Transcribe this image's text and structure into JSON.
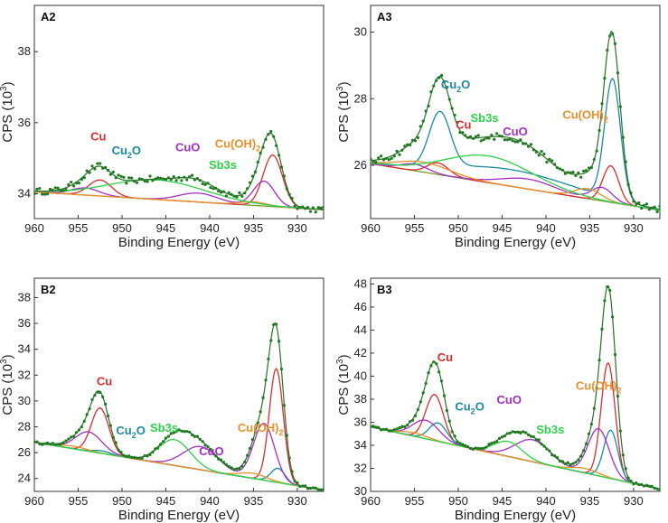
{
  "colors": {
    "Cu": "#d62e2e",
    "Cu2O": "#1a8aa0",
    "CuO": "#a22fc4",
    "Cu(OH)2": "#e8902a",
    "Sb3s": "#2fd14a",
    "background": "#7a9a2a",
    "data": "#1f7a1f",
    "envelope": "#2a6e2a"
  },
  "chart_data": [
    {
      "id": "A2",
      "type": "line",
      "label": "A2",
      "xlabel": "Binding Energy (eV)",
      "ylabel": "CPS (10^3)",
      "ylabel_main": "CPS (10",
      "ylabel_sup": "3",
      "ylabel_end": ")",
      "xlim": [
        960,
        927
      ],
      "ylim": [
        33.3,
        39.3
      ],
      "xticks": [
        960,
        955,
        950,
        945,
        940,
        935,
        930
      ],
      "yticks": [
        34,
        36,
        38
      ],
      "annotations": [
        {
          "text": "Cu",
          "sub": "",
          "species": "Cu",
          "x": 952.7,
          "y": 35.5
        },
        {
          "text": "Cu",
          "sub": "2",
          "post": "O",
          "species": "Cu2O",
          "x": 949.5,
          "y": 35.1
        },
        {
          "text": "CuO",
          "sub": "",
          "species": "CuO",
          "x": 942.5,
          "y": 35.2
        },
        {
          "text": "Cu(OH)",
          "sub": "2",
          "species": "Cu(OH)2",
          "x": 936.8,
          "y": 35.3
        },
        {
          "text": "Sb3s",
          "sub": "",
          "species": "Sb3s",
          "x": 938.5,
          "y": 34.7
        }
      ],
      "background": {
        "x": [
          960,
          927
        ],
        "y": [
          34.05,
          33.55
        ]
      },
      "components": [
        {
          "species": "Cu",
          "peaks": [
            [
              952.5,
              0.45,
              1.3
            ],
            [
              932.8,
              1.45,
              1.1
            ]
          ]
        },
        {
          "species": "Cu2O",
          "peaks": []
        },
        {
          "species": "CuO",
          "peaks": [
            [
              954.2,
              0.2,
              1.6
            ],
            [
              941.3,
              0.25,
              2.2
            ],
            [
              933.8,
              0.7,
              1.2
            ]
          ]
        },
        {
          "species": "Cu(OH)2",
          "peaks": [
            [
              935.0,
              0.1,
              1.5
            ]
          ]
        },
        {
          "species": "Sb3s",
          "peaks": [
            [
              946.0,
              0.55,
              5.5
            ]
          ]
        }
      ],
      "noise": 0.09
    },
    {
      "id": "A3",
      "type": "line",
      "label": "A3",
      "xlabel": "Binding Energy (eV)",
      "ylabel": "CPS (10^3)",
      "ylabel_main": "CPS (10",
      "ylabel_sup": "3",
      "ylabel_end": ")",
      "xlim": [
        960,
        927
      ],
      "ylim": [
        24.4,
        30.8
      ],
      "xticks": [
        960,
        955,
        950,
        945,
        940,
        935,
        930
      ],
      "yticks": [
        26,
        28,
        30
      ],
      "annotations": [
        {
          "text": "Cu",
          "sub": "2",
          "post": "O",
          "species": "Cu2O",
          "x": 950.3,
          "y": 28.3
        },
        {
          "text": "Cu",
          "sub": "",
          "species": "Cu",
          "x": 949.4,
          "y": 27.1
        },
        {
          "text": "Sb3s",
          "sub": "",
          "species": "Sb3s",
          "x": 947.0,
          "y": 27.3
        },
        {
          "text": "CuO",
          "sub": "",
          "species": "CuO",
          "x": 943.5,
          "y": 26.9
        },
        {
          "text": "Cu(OH)",
          "sub": "2",
          "species": "Cu(OH)2",
          "x": 935.5,
          "y": 27.4
        }
      ],
      "background": {
        "x": [
          960,
          927
        ],
        "y": [
          26.05,
          24.65
        ]
      },
      "components": [
        {
          "species": "Cu",
          "peaks": [
            [
              952.3,
              0.35,
              1.2
            ],
            [
              932.6,
              1.1,
              0.9
            ]
          ]
        },
        {
          "species": "Cu2O",
          "peaks": [
            [
              952.1,
              1.65,
              1.2
            ],
            [
              932.4,
              3.6,
              0.9
            ],
            [
              944.0,
              0.5,
              7.0
            ]
          ]
        },
        {
          "species": "CuO",
          "peaks": [
            [
              955.0,
              0.2,
              1.5
            ],
            [
              942.0,
              0.3,
              3.0
            ],
            [
              933.6,
              0.4,
              1.2
            ]
          ]
        },
        {
          "species": "Cu(OH)2",
          "peaks": [
            [
              954.0,
              0.3,
              3.0
            ],
            [
              935.2,
              0.3,
              1.5
            ]
          ]
        },
        {
          "species": "Sb3s",
          "peaks": [
            [
              946.5,
              0.8,
              5.0
            ]
          ]
        }
      ],
      "noise": 0.1
    },
    {
      "id": "B2",
      "type": "line",
      "label": "B2",
      "xlabel": "Binding Energy (eV)",
      "ylabel": "CPS (10^3)",
      "ylabel_main": "CPS (10",
      "ylabel_sup": "3",
      "ylabel_end": ")",
      "xlim": [
        960,
        927
      ],
      "ylim": [
        23.0,
        39.5
      ],
      "xticks": [
        960,
        955,
        950,
        945,
        940,
        935,
        930
      ],
      "yticks": [
        24,
        26,
        28,
        30,
        32,
        34,
        36,
        38
      ],
      "annotations": [
        {
          "text": "Cu",
          "sub": "",
          "species": "Cu",
          "x": 952.0,
          "y": 31.2
        },
        {
          "text": "Cu",
          "sub": "2",
          "post": "O",
          "species": "Cu2O",
          "x": 949.0,
          "y": 27.4
        },
        {
          "text": "Sb3s",
          "sub": "",
          "species": "Sb3s",
          "x": 945.2,
          "y": 27.6
        },
        {
          "text": "Cu(OH)",
          "sub": "2",
          "species": "Cu(OH)2",
          "x": 934.2,
          "y": 27.6
        },
        {
          "text": "CuO",
          "sub": "",
          "species": "CuO",
          "x": 939.8,
          "y": 25.8
        }
      ],
      "background": {
        "x": [
          960,
          927
        ],
        "y": [
          26.8,
          23.1
        ]
      },
      "components": [
        {
          "species": "Cu",
          "peaks": [
            [
              952.5,
              3.5,
              1.0
            ],
            [
              932.4,
              8.8,
              0.8
            ]
          ]
        },
        {
          "species": "Cu2O",
          "peaks": [
            [
              952.3,
              0.2,
              1.0
            ],
            [
              932.2,
              1.1,
              0.8
            ]
          ]
        },
        {
          "species": "CuO",
          "peaks": [
            [
              953.8,
              1.5,
              1.5
            ],
            [
              941.0,
              1.8,
              2.0
            ],
            [
              933.8,
              4.4,
              1.2
            ]
          ]
        },
        {
          "species": "Cu(OH)2",
          "peaks": [
            [
              955.5,
              0.2,
              1.5
            ],
            [
              935.0,
              0.4,
              1.5
            ]
          ]
        },
        {
          "species": "Sb3s",
          "peaks": [
            [
              944.0,
              2.0,
              1.8
            ]
          ]
        }
      ],
      "noise": 0.1
    },
    {
      "id": "B3",
      "type": "line",
      "label": "B3",
      "xlabel": "Binding Energy (eV)",
      "ylabel": "CPS (10^3)",
      "ylabel_main": "CPS (10",
      "ylabel_sup": "3",
      "ylabel_end": ")",
      "xlim": [
        960,
        927
      ],
      "ylim": [
        30.0,
        48.5
      ],
      "xticks": [
        960,
        955,
        950,
        945,
        940,
        935,
        930
      ],
      "yticks": [
        30,
        32,
        34,
        36,
        38,
        40,
        42,
        44,
        46,
        48
      ],
      "annotations": [
        {
          "text": "Cu",
          "sub": "",
          "species": "Cu",
          "x": 951.5,
          "y": 41.3
        },
        {
          "text": "Cu",
          "sub": "2",
          "post": "O",
          "species": "Cu2O",
          "x": 948.7,
          "y": 37.0
        },
        {
          "text": "CuO",
          "sub": "",
          "species": "CuO",
          "x": 944.2,
          "y": 37.6
        },
        {
          "text": "Cu(OH)",
          "sub": "2",
          "species": "Cu(OH)2",
          "x": 934.0,
          "y": 38.8
        },
        {
          "text": "Sb3s",
          "sub": "",
          "species": "Sb3s",
          "x": 939.5,
          "y": 35.0
        }
      ],
      "background": {
        "x": [
          960,
          927
        ],
        "y": [
          35.6,
          30.2
        ]
      },
      "components": [
        {
          "species": "Cu",
          "peaks": [
            [
              952.7,
              4.0,
              1.0
            ],
            [
              932.9,
              10.0,
              0.8
            ]
          ]
        },
        {
          "species": "Cu2O",
          "peaks": [
            [
              952.3,
              1.6,
              1.0
            ],
            [
              932.6,
              4.2,
              0.8
            ]
          ]
        },
        {
          "species": "CuO",
          "peaks": [
            [
              953.7,
              1.6,
              1.5
            ],
            [
              941.5,
              1.9,
              2.0
            ],
            [
              934.0,
              4.1,
              1.2
            ]
          ]
        },
        {
          "species": "Cu(OH)2",
          "peaks": [
            [
              955.0,
              0.3,
              1.5
            ],
            [
              935.5,
              0.4,
              1.5
            ]
          ]
        },
        {
          "species": "Sb3s",
          "peaks": [
            [
              944.3,
              1.3,
              1.6
            ]
          ]
        }
      ],
      "noise": 0.12
    }
  ]
}
